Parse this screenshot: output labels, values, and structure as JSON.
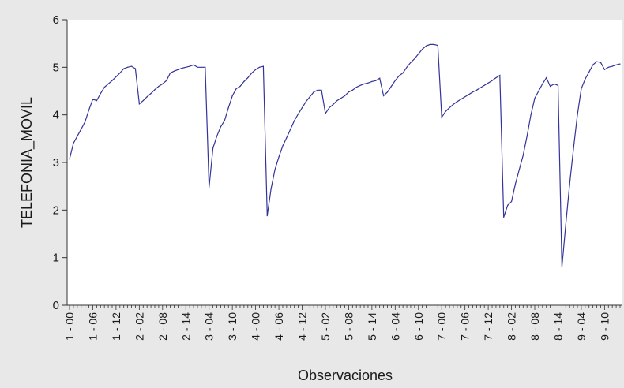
{
  "chart_data": {
    "type": "line",
    "xlabel": "Observaciones",
    "ylabel": "TELEFONIA_MOVIL",
    "ylim": [
      0,
      6
    ],
    "yticks": [
      0,
      1,
      2,
      3,
      4,
      5,
      6
    ],
    "grid": false,
    "line_color": "#33339a",
    "plot_background": "#ffffff",
    "page_background": "#e8e8e8",
    "xtick_labels": [
      "1 - 00",
      "1 - 06",
      "1 - 12",
      "2 - 02",
      "2 - 08",
      "2 - 14",
      "3 - 04",
      "3 - 10",
      "4 - 00",
      "4 - 06",
      "4 - 12",
      "5 - 02",
      "5 - 08",
      "5 - 14",
      "6 - 04",
      "6 - 10",
      "7 - 00",
      "7 - 06",
      "7 - 12",
      "8 - 02",
      "8 - 08",
      "8 - 14",
      "9 - 04",
      "9 - 10"
    ],
    "series": [
      {
        "values": [
          3.07,
          3.4,
          3.55,
          3.7,
          3.85,
          4.1,
          4.33,
          4.3,
          4.45,
          4.58,
          4.65,
          4.72,
          4.8,
          4.88,
          4.97,
          5.0,
          5.02,
          4.97,
          4.23,
          4.3,
          4.38,
          4.45,
          4.53,
          4.6,
          4.65,
          4.72,
          4.88,
          4.92,
          4.95,
          4.98,
          5.0,
          5.02,
          5.05,
          5.0,
          5.0,
          5.0,
          2.48,
          3.3,
          3.55,
          3.75,
          3.88,
          4.15,
          4.4,
          4.55,
          4.6,
          4.7,
          4.78,
          4.88,
          4.95,
          5.0,
          5.02,
          1.88,
          2.45,
          2.85,
          3.12,
          3.35,
          3.52,
          3.7,
          3.88,
          4.02,
          4.15,
          4.28,
          4.38,
          4.48,
          4.52,
          4.52,
          4.03,
          4.15,
          4.22,
          4.3,
          4.35,
          4.4,
          4.48,
          4.52,
          4.58,
          4.62,
          4.65,
          4.67,
          4.7,
          4.72,
          4.77,
          4.4,
          4.48,
          4.6,
          4.72,
          4.82,
          4.88,
          5.0,
          5.1,
          5.18,
          5.28,
          5.38,
          5.45,
          5.48,
          5.48,
          5.46,
          3.95,
          4.07,
          4.15,
          4.22,
          4.28,
          4.33,
          4.38,
          4.43,
          4.48,
          4.52,
          4.57,
          4.62,
          4.67,
          4.72,
          4.78,
          4.83,
          1.85,
          2.1,
          2.18,
          2.55,
          2.85,
          3.15,
          3.55,
          4.0,
          4.35,
          4.5,
          4.65,
          4.78,
          4.6,
          4.65,
          4.62,
          0.8,
          1.7,
          2.55,
          3.3,
          4.0,
          4.55,
          4.75,
          4.9,
          5.05,
          5.12,
          5.1,
          4.95,
          5.0,
          5.02,
          5.05,
          5.07
        ]
      }
    ]
  }
}
